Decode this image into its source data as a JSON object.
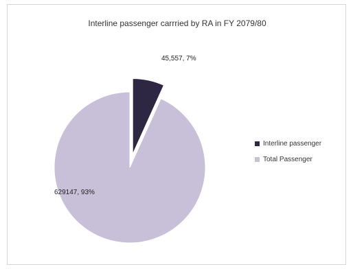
{
  "chart_data": {
    "type": "pie",
    "title": "Interline passenger carrried by RA in FY 2079/80",
    "slices": [
      {
        "name": "Interline passenger",
        "value": 45557,
        "label": "45,557, 7%",
        "color": "#2e2744",
        "exploded": true
      },
      {
        "name": "Total Passenger",
        "value": 629147,
        "label": "629147, 93%",
        "color": "#c7c0d8",
        "exploded": false
      }
    ],
    "legend": {
      "position": "right",
      "items": [
        {
          "name": "Interline passenger",
          "color": "#2e2744"
        },
        {
          "name": "Total Passenger",
          "color": "#c7c0d8"
        }
      ]
    }
  }
}
